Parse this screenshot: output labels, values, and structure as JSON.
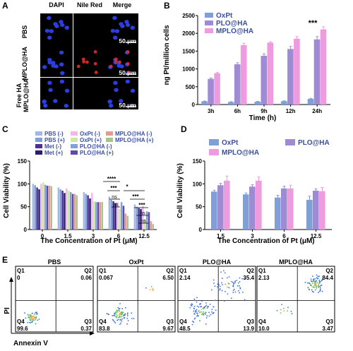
{
  "panels": {
    "A": {
      "letter": "A",
      "columns": [
        "DAPI",
        "Nile Red",
        "Merge"
      ],
      "rows": [
        {
          "label_lines": [
            "PBS"
          ],
          "scale": "50 μm"
        },
        {
          "label_lines": [
            "MPLO@HA"
          ],
          "scale": "50 μm"
        },
        {
          "label_lines": [
            "Free HA",
            "MPLO@HA"
          ],
          "scale": "50 μm"
        }
      ]
    },
    "B": {
      "letter": "B",
      "significance": "***"
    },
    "C": {
      "letter": "C",
      "significance": [
        "****",
        "***",
        "ns",
        "ns",
        "*",
        "***",
        "***",
        "ns",
        "ns"
      ]
    },
    "D": {
      "letter": "D"
    },
    "E": {
      "letter": "E",
      "xlabel": "Annexin V",
      "ylabel": "PI",
      "plots": [
        {
          "title": "PBS",
          "q1_label": "Q1",
          "q2_label": "Q2",
          "q3_label": "Q3",
          "q4_label": "Q4",
          "q1": "0",
          "q2": "0.06",
          "q3": "0.37",
          "q4": "99.6"
        },
        {
          "title": "OxPt",
          "q1_label": "Q1",
          "q2_label": "Q2",
          "q3_label": "Q3",
          "q4_label": "Q4",
          "q1": "0.067",
          "q2": "6.50",
          "q3": "9.67",
          "q4": "83.8"
        },
        {
          "title": "PLO@HA",
          "q1_label": "Q1",
          "q2_label": "Q2",
          "q3_label": "Q3",
          "q4_label": "Q4",
          "q1": "2.14",
          "q2": "35.4",
          "q3": "13.9",
          "q4": "48.5"
        },
        {
          "title": "MPLO@HA",
          "q1_label": "Q1",
          "q2_label": "Q2",
          "q3_label": "Q3",
          "q4_label": "Q4",
          "q1": "2.13",
          "q2": "84.4",
          "q3": "3.47",
          "q4": "10.0"
        }
      ]
    }
  },
  "chart_data": [
    {
      "type": "bar",
      "panel": "B",
      "categories": [
        "3h",
        "6h",
        "9h",
        "12h",
        "24h"
      ],
      "xlabel": "Time (h)",
      "ylabel": "ng Pt/million cells",
      "ylim": [
        0,
        2500
      ],
      "yticks": [
        "0",
        "500",
        "1000",
        "1500",
        "2000",
        "2500"
      ],
      "legend_position": "top-left",
      "series": [
        {
          "name": "OxPt",
          "color": "#7f9fd6",
          "values": [
            90,
            70,
            80,
            95,
            160
          ],
          "errors": [
            10,
            10,
            10,
            10,
            15
          ]
        },
        {
          "name": "PLO@HA",
          "color": "#9f8bd3",
          "values": [
            720,
            1130,
            1370,
            1560,
            1830
          ],
          "errors": [
            25,
            45,
            55,
            70,
            80
          ]
        },
        {
          "name": "MPLO@HA",
          "color": "#ee9be0",
          "values": [
            880,
            1670,
            1740,
            1850,
            2110
          ],
          "errors": [
            20,
            50,
            25,
            60,
            75
          ]
        }
      ]
    },
    {
      "type": "bar",
      "panel": "C",
      "categories": [
        "0",
        "1.5",
        "3",
        "6",
        "12.5"
      ],
      "xlabel": "The Concentration of Pt (μM)",
      "ylabel": "Cell Viability (%)",
      "ylim": [
        0,
        150
      ],
      "yticks": [
        "0",
        "50",
        "100",
        "150"
      ],
      "legend_position": "top",
      "series": [
        {
          "name": "PBS (-)",
          "color": "#a4b8e6",
          "values": [
            100,
            92,
            82,
            72,
            55
          ]
        },
        {
          "name": "PBS (+)",
          "color": "#7f9fd6",
          "values": [
            97,
            88,
            78,
            65,
            50
          ]
        },
        {
          "name": "Met (-)",
          "color": "#4d2e94",
          "values": [
            92,
            85,
            75,
            62,
            47
          ]
        },
        {
          "name": "Met (+)",
          "color": "#2b1b73",
          "values": [
            88,
            80,
            68,
            58,
            45
          ]
        },
        {
          "name": "OxPt (-)",
          "color": "#f3b6ea",
          "values": [
            100,
            90,
            80,
            60,
            52
          ]
        },
        {
          "name": "OxPt (+)",
          "color": "#cde7a4",
          "values": [
            103,
            85,
            62,
            45,
            22
          ]
        },
        {
          "name": "PLO@HA (-)",
          "color": "#7fa3d9",
          "values": [
            98,
            82,
            60,
            60,
            40
          ]
        },
        {
          "name": "PLO@HA (+)",
          "color": "#5f4aa8",
          "values": [
            96,
            78,
            60,
            52,
            38
          ]
        },
        {
          "name": "MPLO@HA (-)",
          "color": "#e59a93",
          "values": [
            96,
            78,
            60,
            35,
            18
          ]
        },
        {
          "name": "MPLO@HA (+)",
          "color": "#a3c786",
          "values": [
            95,
            75,
            60,
            30,
            12
          ]
        }
      ]
    },
    {
      "type": "bar",
      "panel": "D",
      "categories": [
        "1.5",
        "3",
        "6",
        "12.5"
      ],
      "xlabel": "The Concentration of Pt (μM)",
      "ylabel": "Cell Viability (%)",
      "ylim": [
        0,
        150
      ],
      "yticks": [
        "0",
        "50",
        "100",
        "150"
      ],
      "legend_position": "top",
      "series": [
        {
          "name": "OxPt",
          "color": "#7f9fd6",
          "values": [
            83,
            77,
            70,
            65
          ],
          "errors": [
            3,
            3,
            5,
            8
          ]
        },
        {
          "name": "PLO@HA",
          "color": "#9f8bd3",
          "values": [
            97,
            94,
            90,
            85
          ],
          "errors": [
            4,
            4,
            5,
            4
          ]
        },
        {
          "name": "MPLO@HA",
          "color": "#ee9be0",
          "values": [
            107,
            107,
            90,
            84
          ],
          "errors": [
            10,
            8,
            7,
            8
          ]
        }
      ]
    }
  ]
}
